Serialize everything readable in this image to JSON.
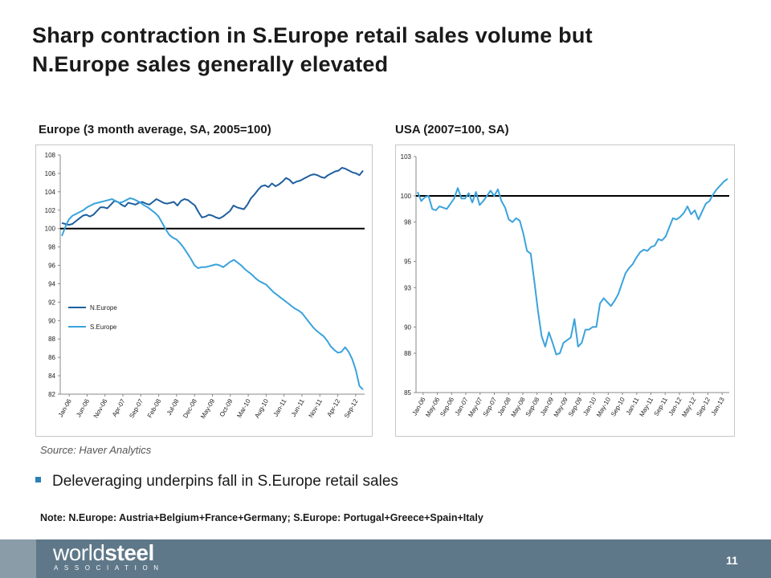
{
  "slide": {
    "title_line1": "Sharp contraction in S.Europe retail sales volume but",
    "title_line2": "N.Europe sales generally elevated",
    "source": "Source: Haver Analytics",
    "bullet": "Deleveraging underpins fall in S.Europe retail sales",
    "note": "Note: N.Europe: Austria+Belgium+France+Germany;  S.Europe: Portugal+Greece+Spain+Italy",
    "page_number": "11",
    "logo_word_a": "world",
    "logo_word_b": "steel",
    "logo_sub": "ASSOCIATION",
    "colors": {
      "footer": "#5f7889",
      "bullet": "#2a7fb8"
    }
  },
  "chart_data": [
    {
      "type": "line",
      "title": "Europe (3 month average, SA, 2005=100)",
      "ylim": [
        82,
        108
      ],
      "yticks": [
        82,
        84,
        86,
        88,
        90,
        92,
        94,
        96,
        98,
        100,
        102,
        104,
        106,
        108
      ],
      "xticks": [
        "Jan-06",
        "Jun-06",
        "Nov-06",
        "Apr-07",
        "Sep-07",
        "Feb-08",
        "Jul-08",
        "Dec-08",
        "May-09",
        "Oct-09",
        "Mar-10",
        "Aug-10",
        "Jan-11",
        "Jun-11",
        "Nov-11",
        "Apr-12",
        "Sep-12"
      ],
      "grid": false,
      "legend": "lower-left",
      "reference_line": 100,
      "series": [
        {
          "name": "N.Europe",
          "color": "#1f5f9e",
          "values": [
            100.6,
            100.5,
            100.4,
            100.5,
            100.8,
            101.1,
            101.4,
            101.5,
            101.3,
            101.5,
            101.9,
            102.3,
            102.3,
            102.2,
            102.6,
            103.0,
            102.9,
            102.6,
            102.4,
            102.8,
            102.7,
            102.6,
            102.8,
            102.9,
            102.7,
            102.6,
            102.9,
            103.2,
            103.0,
            102.8,
            102.7,
            102.8,
            102.9,
            102.5,
            103.0,
            103.2,
            103.1,
            102.8,
            102.5,
            101.8,
            101.2,
            101.3,
            101.5,
            101.4,
            101.2,
            101.1,
            101.3,
            101.6,
            101.9,
            102.5,
            102.3,
            102.2,
            102.1,
            102.6,
            103.3,
            103.7,
            104.2,
            104.6,
            104.7,
            104.5,
            104.9,
            104.6,
            104.8,
            105.1,
            105.5,
            105.3,
            104.9,
            105.1,
            105.2,
            105.4,
            105.6,
            105.8,
            105.9,
            105.8,
            105.6,
            105.5,
            105.8,
            106.0,
            106.2,
            106.3,
            106.6,
            106.5,
            106.3,
            106.1,
            106.0,
            105.8,
            106.3
          ]
        },
        {
          "name": "S.Europe",
          "color": "#3aa3dc",
          "values": [
            99.2,
            100.2,
            101.0,
            101.4,
            101.6,
            101.8,
            102.0,
            102.3,
            102.5,
            102.7,
            102.8,
            102.9,
            103.0,
            103.1,
            103.2,
            103.0,
            102.8,
            102.9,
            103.1,
            103.3,
            103.2,
            103.0,
            102.8,
            102.5,
            102.3,
            102.0,
            101.7,
            101.3,
            100.6,
            99.9,
            99.3,
            99.0,
            98.8,
            98.4,
            97.9,
            97.3,
            96.7,
            96.0,
            95.7,
            95.8,
            95.8,
            95.9,
            96.0,
            96.1,
            96.0,
            95.8,
            96.1,
            96.4,
            96.6,
            96.3,
            96.0,
            95.6,
            95.3,
            95.0,
            94.6,
            94.3,
            94.1,
            93.9,
            93.5,
            93.1,
            92.8,
            92.5,
            92.2,
            91.9,
            91.6,
            91.3,
            91.1,
            90.8,
            90.3,
            89.8,
            89.3,
            88.9,
            88.6,
            88.3,
            87.8,
            87.2,
            86.8,
            86.5,
            86.6,
            87.1,
            86.6,
            85.8,
            84.6,
            82.9,
            82.5
          ]
        }
      ]
    },
    {
      "type": "line",
      "title": "USA (2007=100, SA)",
      "ylim": [
        85,
        103
      ],
      "yticks": [
        85,
        88,
        90,
        93,
        95,
        98,
        100,
        103
      ],
      "xticks": [
        "Jan-06",
        "May-06",
        "Sep-06",
        "Jan-07",
        "May-07",
        "Sep-07",
        "Jan-08",
        "May-08",
        "Sep-08",
        "Jan-09",
        "May-09",
        "Sep-09",
        "Jan-10",
        "May-10",
        "Sep-10",
        "Jan-11",
        "May-11",
        "Sep-11",
        "Jan-12",
        "May-12",
        "Sep-12",
        "Jan-13"
      ],
      "grid": false,
      "legend": "none",
      "reference_line": 100,
      "series": [
        {
          "name": "",
          "color": "#3aa3dc",
          "values": [
            100.3,
            99.6,
            99.9,
            100.0,
            99.0,
            98.9,
            99.2,
            99.1,
            99.0,
            99.4,
            99.8,
            100.6,
            99.8,
            99.8,
            100.2,
            99.5,
            100.3,
            99.3,
            99.6,
            100.0,
            100.4,
            100.0,
            100.5,
            99.6,
            99.1,
            98.2,
            98.0,
            98.3,
            98.1,
            97.1,
            95.8,
            95.6,
            93.5,
            91.2,
            89.3,
            88.5,
            89.6,
            88.8,
            87.9,
            88.0,
            88.8,
            89.0,
            89.2,
            90.6,
            88.5,
            88.8,
            89.8,
            89.8,
            90.0,
            90.0,
            91.8,
            92.2,
            91.9,
            91.6,
            92.0,
            92.5,
            93.3,
            94.1,
            94.5,
            94.8,
            95.3,
            95.7,
            95.9,
            95.8,
            96.1,
            96.2,
            96.7,
            96.6,
            96.9,
            97.6,
            98.3,
            98.2,
            98.4,
            98.7,
            99.2,
            98.6,
            98.9,
            98.2,
            98.8,
            99.4,
            99.6,
            100.1,
            100.5,
            100.8,
            101.1,
            101.3
          ]
        }
      ]
    }
  ]
}
